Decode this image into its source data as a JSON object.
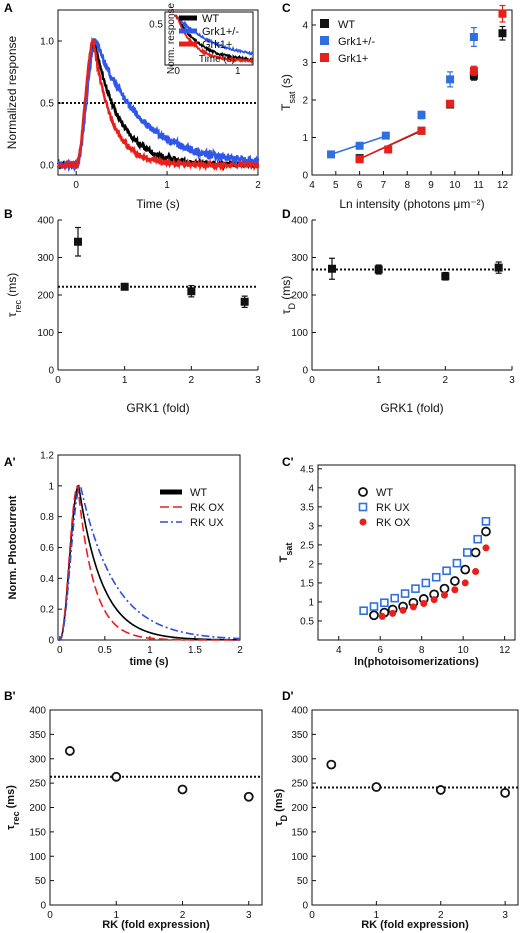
{
  "chart_data": [
    {
      "id": "A",
      "panel_label": "A",
      "type": "line",
      "xlabel": "Time (s)",
      "ylabel": "Normalized response",
      "xlim": [
        -0.2,
        2
      ],
      "ylim": [
        -0.08,
        1.25
      ],
      "xticks": [
        0,
        1,
        2
      ],
      "yticks": [
        0.0,
        0.5,
        1.0
      ],
      "ytick_labels": [
        "0.0",
        "0.5",
        "1.0"
      ],
      "hline": 0.5,
      "series": [
        {
          "name": "WT",
          "color": "#000000",
          "peak_time": 0.2,
          "tau": 0.28,
          "noise": 0.02
        },
        {
          "name": "Grk1+/-",
          "color": "#2f58e8",
          "peak_time": 0.22,
          "tau": 0.5,
          "noise": 0.03
        },
        {
          "name": "Grk1+",
          "color": "#e8201b",
          "peak_time": 0.19,
          "tau": 0.2,
          "noise": 0.02
        }
      ],
      "inset": {
        "ylabel": "Norm. response",
        "xlabel": "Time (s)",
        "xticks": [
          0,
          1
        ],
        "yticks": [
          0.5
        ],
        "ytick_labels": [
          "0.5"
        ]
      }
    },
    {
      "id": "C",
      "panel_label": "C",
      "type": "scatter",
      "xlabel": "Ln intensity (photons μm⁻²)",
      "ylabel": "T",
      "ylabel_sub": "sat",
      "ylabel_unit": " (s)",
      "xlim": [
        4,
        12.4
      ],
      "ylim": [
        0,
        4.4
      ],
      "xticks": [
        4,
        5,
        6,
        7,
        8,
        9,
        10,
        11,
        12
      ],
      "yticks": [
        0,
        1,
        2,
        3,
        4
      ],
      "series": [
        {
          "name": "WT",
          "color": "#111111",
          "marker": "square",
          "x": [
            6.0,
            8.6,
            9.8,
            10.8,
            12.0
          ],
          "y": [
            0.45,
            1.18,
            1.88,
            2.65,
            3.78
          ],
          "err": [
            0.05,
            0.06,
            0.08,
            0.12,
            0.18
          ]
        },
        {
          "name": "Grk1+/-",
          "color": "#2f6fe0",
          "marker": "square",
          "x": [
            4.8,
            6.0,
            7.1,
            8.6,
            9.8,
            10.8
          ],
          "y": [
            0.55,
            0.78,
            1.05,
            1.6,
            2.55,
            3.68
          ],
          "err": [
            0.05,
            0.06,
            0.07,
            0.1,
            0.2,
            0.25
          ]
        },
        {
          "name": "Grk1+",
          "color": "#e8201b",
          "marker": "square",
          "x": [
            6.0,
            7.2,
            8.6,
            9.8,
            10.8,
            12.0
          ],
          "y": [
            0.42,
            0.68,
            1.18,
            1.9,
            2.78,
            4.3
          ],
          "err": [
            0.04,
            0.05,
            0.06,
            0.08,
            0.12,
            0.22
          ]
        }
      ],
      "fit_lines": [
        {
          "color": "#2f6fe0",
          "x": [
            4.8,
            7.2
          ],
          "y": [
            0.55,
            1.06
          ]
        },
        {
          "color": "#111111",
          "x": [
            5.9,
            8.6
          ],
          "y": [
            0.4,
            1.18
          ]
        },
        {
          "color": "#e8201b",
          "x": [
            5.9,
            8.6
          ],
          "y": [
            0.4,
            1.2
          ]
        }
      ]
    },
    {
      "id": "B",
      "panel_label": "B",
      "type": "scatter",
      "xlabel": "GRK1 (fold)",
      "ylabel": "τ",
      "ylabel_sub": "rec",
      "ylabel_unit": " (ms)",
      "xlim": [
        0,
        3
      ],
      "ylim": [
        0,
        400
      ],
      "xticks": [
        0,
        1,
        2,
        3
      ],
      "yticks": [
        0,
        100,
        200,
        300,
        400
      ],
      "hline": 222,
      "series": [
        {
          "name": "",
          "color": "#111111",
          "marker": "square",
          "x": [
            0.3,
            1.0,
            2.0,
            2.8
          ],
          "y": [
            342,
            222,
            210,
            182
          ],
          "err": [
            38,
            8,
            15,
            15
          ]
        }
      ]
    },
    {
      "id": "D",
      "panel_label": "D",
      "type": "scatter",
      "xlabel": "GRK1 (fold)",
      "ylabel": "τ",
      "ylabel_sub": "D",
      "ylabel_unit": " (ms)",
      "xlim": [
        0,
        3
      ],
      "ylim": [
        0,
        400
      ],
      "xticks": [
        0,
        1,
        2,
        3
      ],
      "yticks": [
        0,
        100,
        200,
        300,
        400
      ],
      "hline": 268,
      "series": [
        {
          "name": "",
          "color": "#111111",
          "marker": "square",
          "x": [
            0.3,
            1.0,
            2.0,
            2.8
          ],
          "y": [
            270,
            268,
            250,
            273
          ],
          "err": [
            28,
            12,
            10,
            15
          ]
        }
      ]
    },
    {
      "id": "A2",
      "panel_label": "A'",
      "type": "line",
      "xlabel": "time (s)",
      "ylabel": "Norm. Photocurrent",
      "xlim": [
        -0.02,
        2
      ],
      "ylim": [
        0,
        1.2
      ],
      "xticks": [
        0,
        0.5,
        1,
        1.5,
        2
      ],
      "xtick_labels": [
        "0",
        "0.5",
        "1",
        "1.5",
        "2"
      ],
      "yticks": [
        0,
        0.2,
        0.4,
        0.6,
        0.8,
        1,
        1.2
      ],
      "ytick_labels": [
        "0",
        "0.2",
        "0.4",
        "0.6",
        "0.8",
        "1",
        "1.2"
      ],
      "series": [
        {
          "name": "WT",
          "color": "#000000",
          "dash": "",
          "peak_time": 0.21,
          "tau": 0.26
        },
        {
          "name": "RK OX",
          "color": "#e8201b",
          "dash": "9,4",
          "peak_time": 0.2,
          "tau": 0.18
        },
        {
          "name": "RK UX",
          "color": "#2f4fd8",
          "dash": "8,3,2,3",
          "peak_time": 0.23,
          "tau": 0.38
        }
      ]
    },
    {
      "id": "C2",
      "panel_label": "C'",
      "type": "scatter",
      "xlabel": "ln(photoisomerizations)",
      "ylabel": "T",
      "ylabel_sub": "sat",
      "xlim": [
        3,
        12.5
      ],
      "ylim": [
        0,
        4.6
      ],
      "xticks": [
        4,
        6,
        8,
        10,
        12
      ],
      "yticks": [
        0.5,
        1,
        1.5,
        2,
        2.5,
        3,
        3.5,
        4,
        4.5
      ],
      "ytick_labels": [
        "0.5",
        "1",
        "1.5",
        "2",
        "2.5",
        "3",
        "3.5",
        "4",
        "4.5"
      ],
      "series": [
        {
          "name": "WT",
          "color": "#111111",
          "marker": "circle-open",
          "x": [
            5.7,
            6.2,
            6.6,
            7.1,
            7.6,
            8.1,
            8.6,
            9.1,
            9.6,
            10.1,
            10.6,
            11.1
          ],
          "y": [
            0.65,
            0.72,
            0.8,
            0.88,
            0.98,
            1.08,
            1.2,
            1.35,
            1.55,
            1.85,
            2.3,
            2.85
          ]
        },
        {
          "name": "RK UX",
          "color": "#2f6fe0",
          "marker": "square-open",
          "x": [
            5.2,
            5.7,
            6.2,
            6.7,
            7.2,
            7.7,
            8.2,
            8.7,
            9.2,
            9.7,
            10.2,
            10.7,
            11.1
          ],
          "y": [
            0.77,
            0.88,
            0.98,
            1.1,
            1.22,
            1.35,
            1.5,
            1.65,
            1.82,
            2.02,
            2.3,
            2.65,
            3.12
          ]
        },
        {
          "name": "RK OX",
          "color": "#e8201b",
          "marker": "circle-filled",
          "x": [
            6.1,
            6.6,
            7.1,
            7.6,
            8.1,
            8.6,
            9.1,
            9.6,
            10.1,
            10.6,
            11.1
          ],
          "y": [
            0.62,
            0.7,
            0.78,
            0.87,
            0.96,
            1.06,
            1.18,
            1.32,
            1.5,
            1.8,
            2.42
          ]
        }
      ]
    },
    {
      "id": "B2",
      "panel_label": "B'",
      "type": "scatter",
      "xlabel": "RK (fold expression)",
      "ylabel": "τ",
      "ylabel_sub": "rec",
      "ylabel_unit": " (ms)",
      "xlim": [
        0,
        3.2
      ],
      "ylim": [
        0,
        400
      ],
      "xticks": [
        0,
        1,
        2,
        3
      ],
      "yticks": [
        0,
        50,
        100,
        150,
        200,
        250,
        300,
        350,
        400
      ],
      "hline": 263,
      "series": [
        {
          "name": "",
          "color": "#111111",
          "marker": "circle-open",
          "x": [
            0.3,
            1.0,
            2.0,
            3.0
          ],
          "y": [
            316,
            263,
            237,
            222
          ]
        }
      ]
    },
    {
      "id": "D2",
      "panel_label": "D'",
      "type": "scatter",
      "xlabel": "RK (fold expression)",
      "ylabel": "τ",
      "ylabel_sub": "D",
      "ylabel_unit": " (ms)",
      "xlim": [
        0,
        3.2
      ],
      "ylim": [
        0,
        400
      ],
      "xticks": [
        0,
        1,
        2,
        3
      ],
      "yticks": [
        0,
        50,
        100,
        150,
        200,
        250,
        300,
        350,
        400
      ],
      "hline": 241,
      "series": [
        {
          "name": "",
          "color": "#111111",
          "marker": "circle-open",
          "x": [
            0.3,
            1.0,
            2.0,
            3.0
          ],
          "y": [
            288,
            242,
            236,
            230
          ]
        }
      ]
    }
  ]
}
